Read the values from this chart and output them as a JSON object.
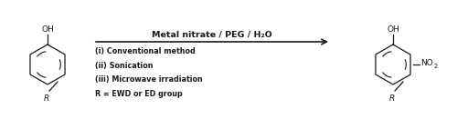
{
  "bg_color": "#ffffff",
  "text_color": "#1a1a1a",
  "arrow_above": "Metal nitrate / PEG / H₂O",
  "conditions": [
    "(i) Conventional method",
    "(ii) Sonication",
    "(iii) Microwave irradiation"
  ],
  "r_label": "R = EWD or ED group",
  "figsize": [
    5.0,
    1.31
  ],
  "dpi": 100,
  "xlim": [
    0,
    5.0
  ],
  "ylim": [
    0,
    1.31
  ]
}
